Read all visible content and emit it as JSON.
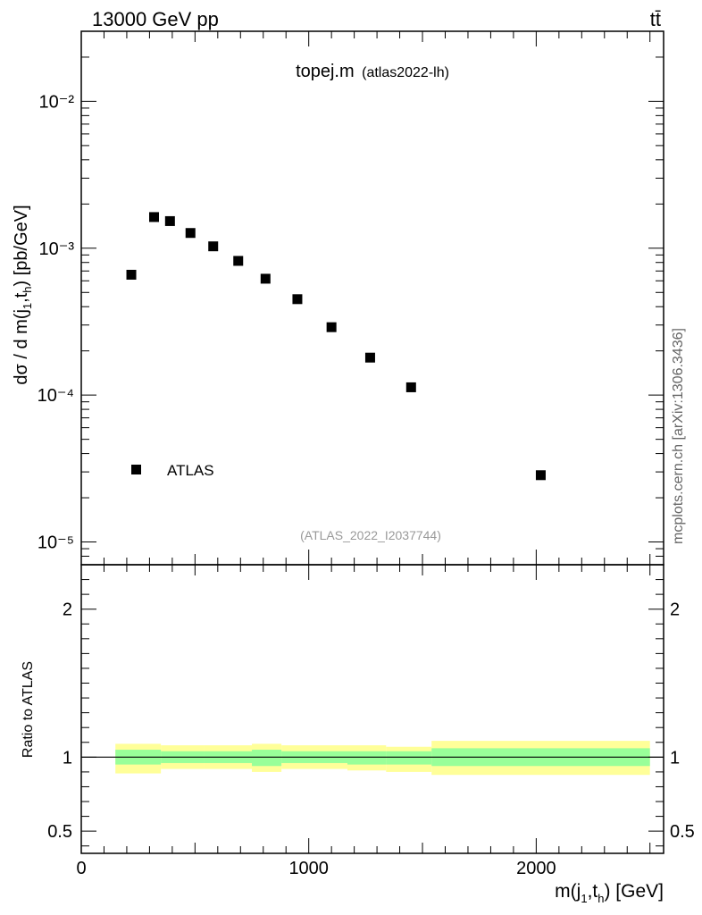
{
  "header": {
    "energy_label": "13000 GeV pp",
    "process_label": "tt̄"
  },
  "side_label": "mcplots.cern.ch [arXiv:1306.3436]",
  "colors": {
    "data_marker": "#000000",
    "band_outer": "#ffff99",
    "band_inner": "#99ff99",
    "analysis_id_text": "#999999"
  },
  "chart_data": [
    {
      "type": "scatter",
      "title": "topej.m",
      "subtitle": "(atlas2022-lh)",
      "analysis_id": "(ATLAS_2022_I2037744)",
      "ylabel": "dσ / d m(j1,th) [pb/GeV]",
      "yscale": "log",
      "xlim": [
        0,
        2560
      ],
      "ylim": [
        7e-06,
        0.03
      ],
      "ytick_labels": [
        "10⁻⁵",
        "10⁻⁴",
        "10⁻³",
        "10⁻²"
      ],
      "legend": {
        "label": "ATLAS",
        "position": "lower-left"
      },
      "series": [
        {
          "name": "ATLAS",
          "x": [
            220,
            320,
            390,
            480,
            580,
            690,
            810,
            950,
            1100,
            1270,
            1450,
            2020
          ],
          "values": [
            0.00066,
            0.00163,
            0.00153,
            0.00127,
            0.00103,
            0.00082,
            0.00062,
            0.00045,
            0.00029,
            0.00018,
            0.000113,
            2.85e-05
          ]
        }
      ]
    },
    {
      "type": "area",
      "ylabel": "Ratio to ATLAS",
      "xlabel": "m(j1,th) [GeV]",
      "xlim": [
        0,
        2560
      ],
      "ylim": [
        0.35,
        2.3
      ],
      "xtick_labels": [
        "0",
        "1000",
        "2000"
      ],
      "ytick_labels": [
        "0.5",
        "1",
        "2"
      ],
      "bins": [
        {
          "lo": 150,
          "hi": 350,
          "inner": [
            0.95,
            1.05
          ],
          "outer": [
            0.89,
            1.09
          ]
        },
        {
          "lo": 350,
          "hi": 540,
          "inner": [
            0.96,
            1.04
          ],
          "outer": [
            0.92,
            1.08
          ]
        },
        {
          "lo": 540,
          "hi": 750,
          "inner": [
            0.96,
            1.04
          ],
          "outer": [
            0.92,
            1.08
          ]
        },
        {
          "lo": 750,
          "hi": 880,
          "inner": [
            0.94,
            1.05
          ],
          "outer": [
            0.9,
            1.09
          ]
        },
        {
          "lo": 880,
          "hi": 1170,
          "inner": [
            0.96,
            1.04
          ],
          "outer": [
            0.92,
            1.08
          ]
        },
        {
          "lo": 1170,
          "hi": 1340,
          "inner": [
            0.95,
            1.04
          ],
          "outer": [
            0.91,
            1.08
          ]
        },
        {
          "lo": 1340,
          "hi": 1540,
          "inner": [
            0.95,
            1.04
          ],
          "outer": [
            0.9,
            1.07
          ]
        },
        {
          "lo": 1540,
          "hi": 2500,
          "inner": [
            0.94,
            1.06
          ],
          "outer": [
            0.88,
            1.11
          ]
        }
      ]
    }
  ]
}
